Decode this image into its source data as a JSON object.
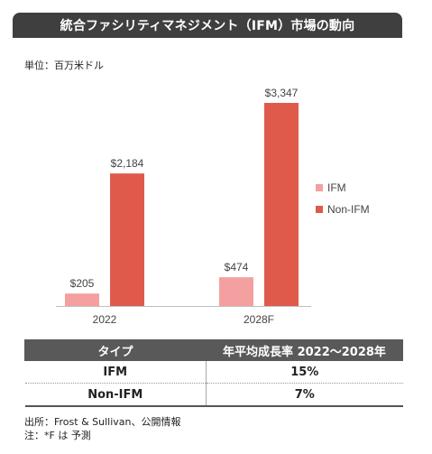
{
  "title": "統合ファシリティマネジメント（IFM）市場の動向",
  "unit_label": "単位：百万米ドル",
  "colors": {
    "ifm": "#f4a0a0",
    "non_ifm": "#e05a4c",
    "title_bg": "#3f3f3f",
    "table_header_bg": "#595959"
  },
  "chart_data": {
    "type": "bar",
    "categories": [
      "2022",
      "2028F"
    ],
    "series": [
      {
        "name": "IFM",
        "values": [
          205,
          474
        ],
        "labels": [
          "$205",
          "$474"
        ]
      },
      {
        "name": "Non-IFM",
        "values": [
          2184,
          3347
        ],
        "labels": [
          "$2,184",
          "$3,347"
        ]
      }
    ],
    "ylim": [
      0,
      3347
    ],
    "legend_position": "right",
    "grid": false
  },
  "table": {
    "headers": [
      "タイプ",
      "年平均成長率 2022〜2028年"
    ],
    "rows": [
      [
        "IFM",
        "15%"
      ],
      [
        "Non-IFM",
        "7%"
      ]
    ]
  },
  "notes": {
    "source": "出所：Frost & Sullivan、公開情報",
    "note": "注：*F は 予測"
  }
}
